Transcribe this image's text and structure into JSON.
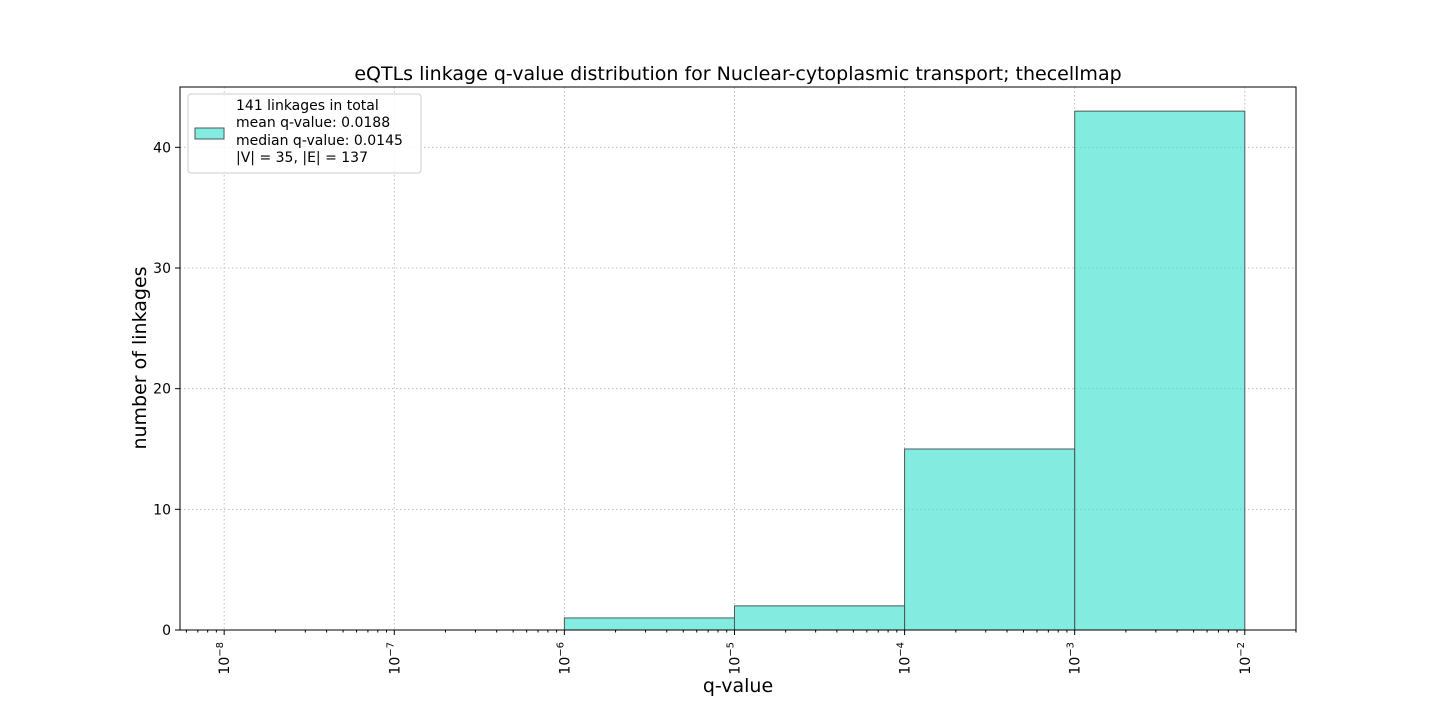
{
  "chart_data": {
    "type": "bar",
    "title": "eQTLs linkage q-value distribution for Nuclear-cytoplasmic transport; thecellmap",
    "xlabel": "q-value",
    "ylabel": "number of linkages",
    "x_scale": "log",
    "xlim": [
      5.5e-09,
      0.02
    ],
    "ylim": [
      0,
      45
    ],
    "grid": true,
    "bar_color": "#40E0D0",
    "bins": [
      {
        "x_start": 1e-08,
        "x_end": 1e-07,
        "value": 0
      },
      {
        "x_start": 1e-07,
        "x_end": 1e-06,
        "value": 0
      },
      {
        "x_start": 1e-06,
        "x_end": 1e-05,
        "value": 1
      },
      {
        "x_start": 1e-05,
        "x_end": 0.0001,
        "value": 2
      },
      {
        "x_start": 0.0001,
        "x_end": 0.001,
        "value": 15
      },
      {
        "x_start": 0.001,
        "x_end": 0.01,
        "value": 43
      }
    ],
    "x_ticks": [
      {
        "value": 1e-08,
        "base": "10",
        "exp": "−8"
      },
      {
        "value": 1e-07,
        "base": "10",
        "exp": "−7"
      },
      {
        "value": 1e-06,
        "base": "10",
        "exp": "−6"
      },
      {
        "value": 1e-05,
        "base": "10",
        "exp": "−5"
      },
      {
        "value": 0.0001,
        "base": "10",
        "exp": "−4"
      },
      {
        "value": 0.001,
        "base": "10",
        "exp": "−3"
      },
      {
        "value": 0.01,
        "base": "10",
        "exp": "−2"
      }
    ],
    "y_ticks": [
      0,
      10,
      20,
      30,
      40
    ],
    "legend": {
      "position": "upper-left",
      "lines": [
        "141 linkages in total",
        "mean q-value: 0.0188",
        "median q-value: 0.0145",
        "|V| = 35, |E| = 137"
      ]
    }
  }
}
